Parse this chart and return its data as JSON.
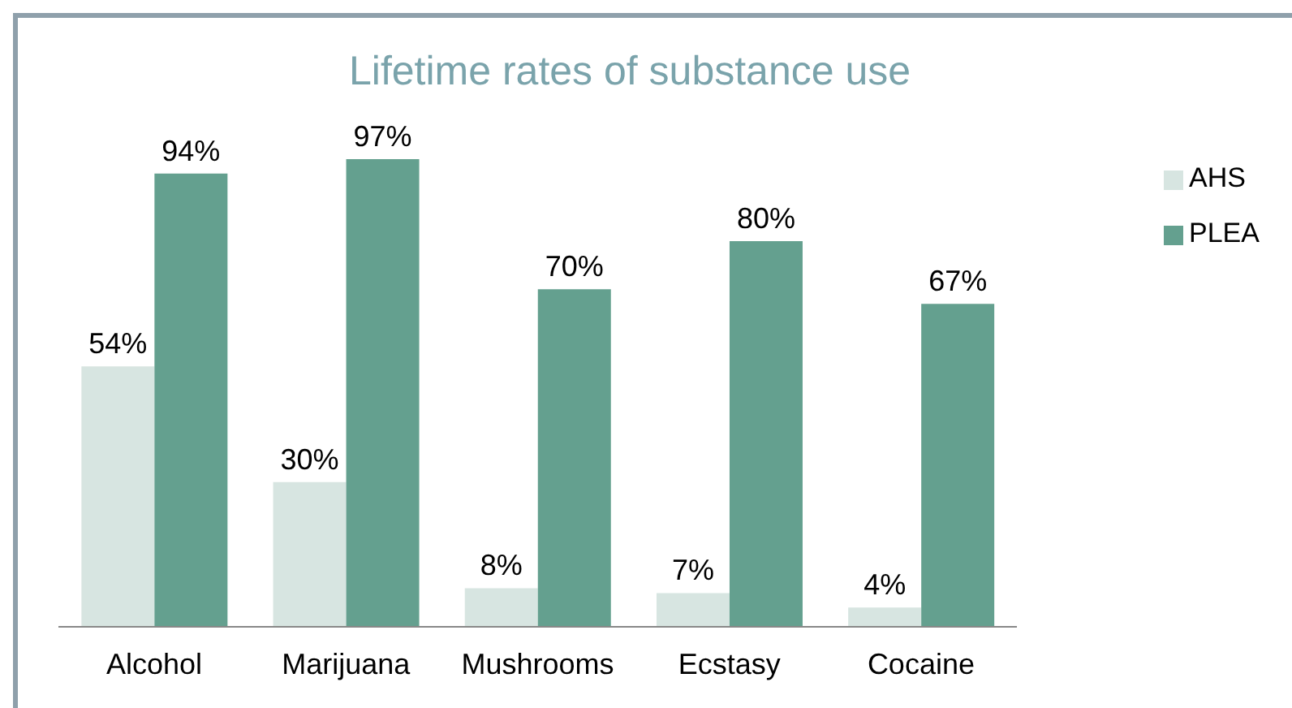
{
  "chart_data": {
    "type": "bar",
    "title": "Lifetime rates of substance use",
    "categories": [
      "Alcohol",
      "Marijuana",
      "Mushrooms",
      "Ecstasy",
      "Cocaine"
    ],
    "legend": "right",
    "grid": false,
    "series": [
      {
        "name": "AHS",
        "color": "#d7e5e1",
        "values": [
          54,
          30,
          8,
          7,
          4
        ],
        "value_labels": [
          "54%",
          "30%",
          "8%",
          "7%",
          "4%"
        ]
      },
      {
        "name": "PLEA",
        "color": "#64a08f",
        "values": [
          94,
          97,
          70,
          80,
          67
        ],
        "value_labels": [
          "94%",
          "97%",
          "70%",
          "80%",
          "67%"
        ]
      }
    ]
  }
}
